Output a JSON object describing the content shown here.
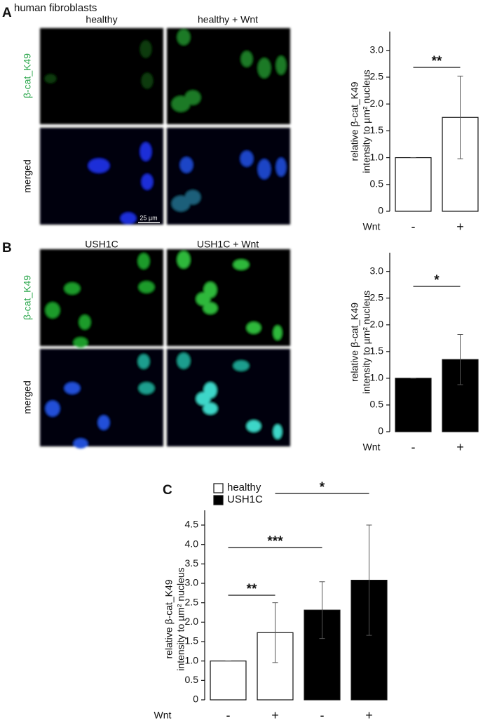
{
  "figure": {
    "title": "human fibroblasts",
    "panel_a": "A",
    "panel_b": "B",
    "panel_c": "C",
    "col_a1": "healthy",
    "col_a2": "healthy + Wnt",
    "col_b1": "USH1C",
    "col_b2": "USH1C + Wnt",
    "row_a1": "β-cat_K49",
    "row_a2": "merged",
    "row_b1": "β-cat_K49",
    "row_b2": "merged",
    "scale_bar": "25 µm"
  },
  "chart_data": [
    {
      "type": "bar",
      "categories": [
        "-",
        "+"
      ],
      "values": [
        1,
        1.75
      ],
      "errors": [
        0,
        0.77
      ],
      "color": "#ffffff",
      "ylabel": [
        "relative β-cat_K49",
        "intensity to µm² nucleus"
      ],
      "xlabel": "Wnt",
      "ylim": [
        0,
        3.35
      ],
      "yticks": [
        0,
        0.5,
        {
          "value": 1,
          "label": "1.0"
        },
        1.5,
        {
          "value": 2,
          "label": "2.0"
        },
        2.5,
        {
          "value": 3,
          "label": "3.0"
        }
      ],
      "annotations": [
        "**"
      ]
    },
    {
      "type": "bar",
      "categories": [
        "-",
        "+"
      ],
      "values": [
        1,
        1.35
      ],
      "errors": [
        0,
        0.47
      ],
      "color": "#000000",
      "ylabel": [
        "relative β-cat_K49",
        "intensity to µm² nucleus"
      ],
      "xlabel": "Wnt",
      "ylim": [
        0,
        3.35
      ],
      "yticks": [
        0,
        0.5,
        {
          "value": 1,
          "label": "1.0"
        },
        1.5,
        {
          "value": 2,
          "label": "2.0"
        },
        2.5,
        {
          "value": 3,
          "label": "3.0"
        }
      ],
      "annotations": [
        "*"
      ]
    },
    {
      "type": "bar",
      "categories": [
        "-",
        "+",
        "-",
        "+"
      ],
      "series": [
        {
          "name": "healthy",
          "color": "#ffffff",
          "values": [
            1,
            1.73,
            null,
            null
          ],
          "errors": [
            0,
            0.77,
            null,
            null
          ]
        },
        {
          "name": "USH1C",
          "color": "#000000",
          "values": [
            null,
            null,
            2.31,
            3.08
          ],
          "errors": [
            null,
            null,
            0.73,
            1.42
          ]
        }
      ],
      "ylabel": [
        "relative β-cat_K49",
        "intensity to µm² nucleus"
      ],
      "xlabel": "Wnt",
      "ylim": [
        0,
        4.88
      ],
      "yticks": [
        0,
        0.5,
        {
          "value": 1,
          "label": "1.0"
        },
        1.5,
        {
          "value": 2,
          "label": "2.0"
        },
        2.5,
        {
          "value": 3,
          "label": "3.0"
        },
        3.5,
        {
          "value": 4,
          "label": "4.0"
        },
        4.5
      ],
      "annotations": [
        "**",
        "***",
        "*"
      ]
    }
  ]
}
